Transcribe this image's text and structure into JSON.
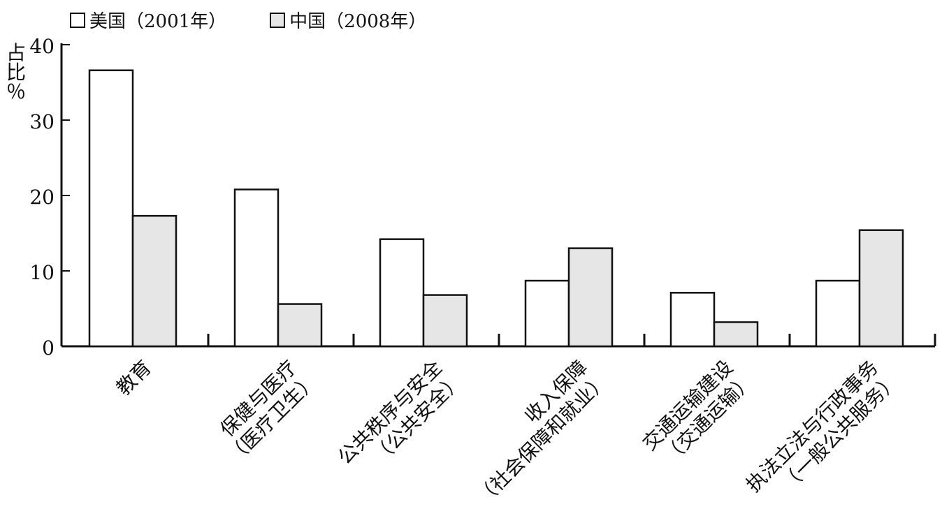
{
  "chart_data": {
    "type": "bar",
    "categories": [
      "教育",
      "保健与医疗（医疗卫生）",
      "公共秩序与安全（公共安全）",
      "收入保障（社会保障和就业）",
      "交通运输建设（交通运输）",
      "执法立法与行政事务（一般公共服务）"
    ],
    "category_lines": [
      [
        "教育"
      ],
      [
        "保健与医疗",
        "（医疗卫生）"
      ],
      [
        "公共秩序与安全",
        "（公共安全）"
      ],
      [
        "收入保障",
        "（社会保障和就业）"
      ],
      [
        "交通运输建设",
        "（交通运输）"
      ],
      [
        "执法立法与行政事务",
        "（一般公共服务）"
      ]
    ],
    "series": [
      {
        "name": "美国（2001年）",
        "values": [
          36.6,
          20.8,
          14.2,
          8.7,
          7.1,
          8.7
        ],
        "color": "#ffffff"
      },
      {
        "name": "中国（2008年）",
        "values": [
          17.3,
          5.6,
          6.8,
          13.0,
          3.2,
          15.4
        ],
        "color": "#e6e6e6"
      }
    ],
    "ylabel": "占比（%）",
    "ylabel_chars": [
      "占",
      "比",
      "％"
    ],
    "yticks": [
      0,
      10,
      20,
      30,
      40
    ],
    "ylim": [
      0,
      40
    ],
    "grid": false,
    "legend_position": "top-left"
  }
}
